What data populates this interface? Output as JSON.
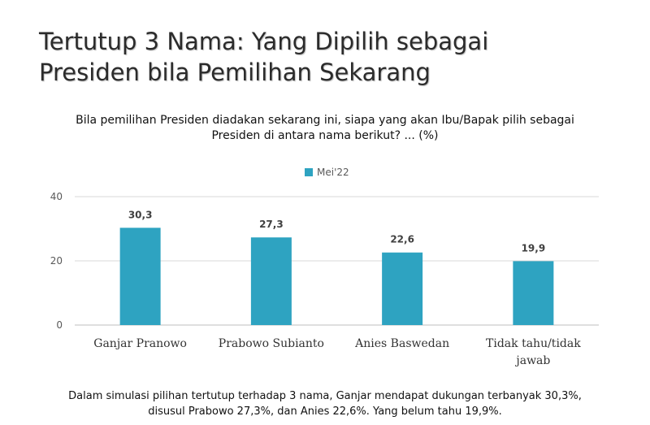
{
  "title": "Tertutup 3 Nama: Yang Dipilih sebagai\nPresiden bila Pemilihan Sekarang",
  "question": "Bila pemilihan Presiden diadakan sekarang ini, siapa yang akan Ibu/Bapak pilih sebagai\nPresiden di antara nama berikut? ... (%)",
  "footer": "Dalam simulasi pilihan tertutup terhadap 3 nama, Ganjar mendapat dukungan terbanyak 30,3%,\ndisusul Prabowo 27,3%, dan Anies 22,6%. Yang belum tahu 19,9%.",
  "chart_data": {
    "type": "bar",
    "categories": [
      "Ganjar Pranowo",
      "Prabowo Subianto",
      "Anies Baswedan",
      "Tidak tahu/tidak\njawab"
    ],
    "series": [
      {
        "name": "Mei'22",
        "values": [
          30.3,
          27.3,
          22.6,
          19.9
        ],
        "labels": [
          "30,3",
          "27,3",
          "22,6",
          "19,9"
        ],
        "color": "#2ea3c1"
      }
    ],
    "yticks": [
      0,
      20,
      40
    ],
    "ylim": [
      0,
      40
    ],
    "grid": true,
    "legend_position": "top-center"
  }
}
